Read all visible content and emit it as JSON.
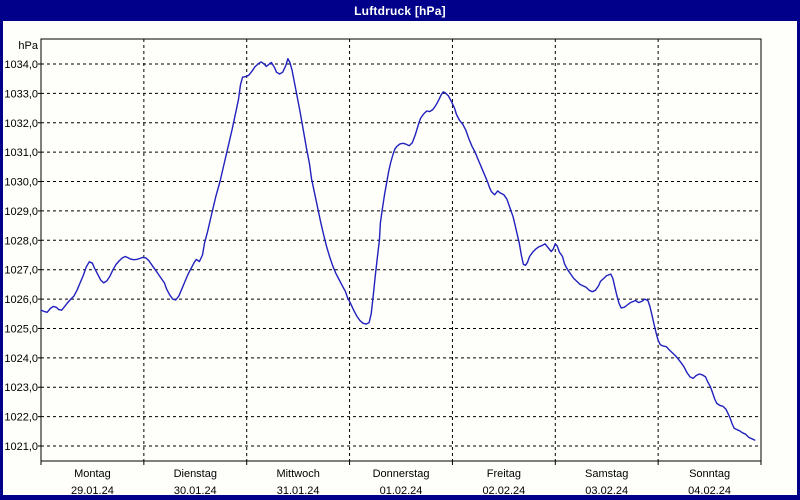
{
  "window": {
    "title": "Luftdruck [hPa]",
    "title_bar_color": "#00008B",
    "border_color": "#00008B",
    "panel_color": "#FEFEFA"
  },
  "chart_data": {
    "type": "line",
    "title": "Luftdruck [hPa]",
    "unit_label": "hPa",
    "ylabel": "hPa",
    "xlabel": "",
    "grid": "dashed",
    "legend": "none",
    "line_color": "#2121BE",
    "axis_color": "#000000",
    "ylim": [
      1020.5,
      1034.8
    ],
    "x_range_days": [
      0,
      7
    ],
    "y_ticks": [
      {
        "value": 1034,
        "label": "1034,0"
      },
      {
        "value": 1033,
        "label": "1033,0"
      },
      {
        "value": 1032,
        "label": "1032,0"
      },
      {
        "value": 1031,
        "label": "1031,0"
      },
      {
        "value": 1030,
        "label": "1030,0"
      },
      {
        "value": 1029,
        "label": "1029,0"
      },
      {
        "value": 1028,
        "label": "1028,0"
      },
      {
        "value": 1027,
        "label": "1027,0"
      },
      {
        "value": 1026,
        "label": "1026,0"
      },
      {
        "value": 1025,
        "label": "1025,0"
      },
      {
        "value": 1024,
        "label": "1024,0"
      },
      {
        "value": 1023,
        "label": "1023,0"
      },
      {
        "value": 1022,
        "label": "1022,0"
      },
      {
        "value": 1021,
        "label": "1021,0"
      }
    ],
    "x_days": [
      {
        "name": "Montag",
        "date": "29.01.24"
      },
      {
        "name": "Dienstag",
        "date": "30.01.24"
      },
      {
        "name": "Mittwoch",
        "date": "31.01.24"
      },
      {
        "name": "Donnerstag",
        "date": "01.02.24"
      },
      {
        "name": "Freitag",
        "date": "02.02.24"
      },
      {
        "name": "Samstag",
        "date": "03.02.24"
      },
      {
        "name": "Sonntag",
        "date": "04.02.24"
      }
    ],
    "series": [
      {
        "name": "Luftdruck",
        "unit": "hPa",
        "points": [
          [
            0.0,
            1025.62
          ],
          [
            0.03,
            1025.58
          ],
          [
            0.06,
            1025.55
          ],
          [
            0.09,
            1025.68
          ],
          [
            0.12,
            1025.75
          ],
          [
            0.15,
            1025.72
          ],
          [
            0.17,
            1025.65
          ],
          [
            0.2,
            1025.62
          ],
          [
            0.23,
            1025.75
          ],
          [
            0.26,
            1025.88
          ],
          [
            0.29,
            1026.0
          ],
          [
            0.32,
            1026.1
          ],
          [
            0.35,
            1026.3
          ],
          [
            0.38,
            1026.55
          ],
          [
            0.41,
            1026.8
          ],
          [
            0.44,
            1027.1
          ],
          [
            0.47,
            1027.27
          ],
          [
            0.5,
            1027.22
          ],
          [
            0.52,
            1027.05
          ],
          [
            0.55,
            1026.85
          ],
          [
            0.58,
            1026.65
          ],
          [
            0.61,
            1026.55
          ],
          [
            0.64,
            1026.62
          ],
          [
            0.67,
            1026.78
          ],
          [
            0.7,
            1027.0
          ],
          [
            0.73,
            1027.18
          ],
          [
            0.76,
            1027.3
          ],
          [
            0.79,
            1027.4
          ],
          [
            0.82,
            1027.45
          ],
          [
            0.85,
            1027.4
          ],
          [
            0.87,
            1027.36
          ],
          [
            0.9,
            1027.34
          ],
          [
            0.93,
            1027.35
          ],
          [
            0.96,
            1027.38
          ],
          [
            0.99,
            1027.42
          ],
          [
            1.02,
            1027.4
          ],
          [
            1.05,
            1027.3
          ],
          [
            1.08,
            1027.15
          ],
          [
            1.11,
            1027.0
          ],
          [
            1.14,
            1026.85
          ],
          [
            1.17,
            1026.7
          ],
          [
            1.2,
            1026.55
          ],
          [
            1.22,
            1026.35
          ],
          [
            1.25,
            1026.15
          ],
          [
            1.28,
            1026.0
          ],
          [
            1.31,
            1025.97
          ],
          [
            1.34,
            1026.1
          ],
          [
            1.37,
            1026.35
          ],
          [
            1.4,
            1026.6
          ],
          [
            1.43,
            1026.85
          ],
          [
            1.46,
            1027.05
          ],
          [
            1.49,
            1027.25
          ],
          [
            1.51,
            1027.35
          ],
          [
            1.54,
            1027.28
          ],
          [
            1.57,
            1027.5
          ],
          [
            1.59,
            1027.9
          ],
          [
            1.62,
            1028.3
          ],
          [
            1.66,
            1028.9
          ],
          [
            1.7,
            1029.5
          ],
          [
            1.74,
            1030.0
          ],
          [
            1.78,
            1030.6
          ],
          [
            1.82,
            1031.2
          ],
          [
            1.86,
            1031.8
          ],
          [
            1.89,
            1032.3
          ],
          [
            1.92,
            1032.8
          ],
          [
            1.94,
            1033.3
          ],
          [
            1.96,
            1033.55
          ],
          [
            1.99,
            1033.57
          ],
          [
            2.02,
            1033.62
          ],
          [
            2.05,
            1033.75
          ],
          [
            2.08,
            1033.9
          ],
          [
            2.11,
            1034.0
          ],
          [
            2.14,
            1034.07
          ],
          [
            2.17,
            1034.0
          ],
          [
            2.19,
            1033.92
          ],
          [
            2.22,
            1034.0
          ],
          [
            2.24,
            1034.05
          ],
          [
            2.27,
            1033.88
          ],
          [
            2.29,
            1033.72
          ],
          [
            2.32,
            1033.66
          ],
          [
            2.35,
            1033.72
          ],
          [
            2.38,
            1033.95
          ],
          [
            2.4,
            1034.18
          ],
          [
            2.42,
            1034.05
          ],
          [
            2.44,
            1033.8
          ],
          [
            2.46,
            1033.45
          ],
          [
            2.49,
            1032.9
          ],
          [
            2.52,
            1032.35
          ],
          [
            2.55,
            1031.75
          ],
          [
            2.58,
            1031.15
          ],
          [
            2.61,
            1030.6
          ],
          [
            2.63,
            1030.1
          ],
          [
            2.66,
            1029.6
          ],
          [
            2.69,
            1029.1
          ],
          [
            2.72,
            1028.6
          ],
          [
            2.75,
            1028.15
          ],
          [
            2.78,
            1027.75
          ],
          [
            2.81,
            1027.4
          ],
          [
            2.84,
            1027.1
          ],
          [
            2.87,
            1026.85
          ],
          [
            2.9,
            1026.65
          ],
          [
            2.93,
            1026.45
          ],
          [
            2.96,
            1026.25
          ],
          [
            2.98,
            1026.05
          ],
          [
            3.01,
            1025.85
          ],
          [
            3.04,
            1025.62
          ],
          [
            3.07,
            1025.42
          ],
          [
            3.1,
            1025.27
          ],
          [
            3.13,
            1025.18
          ],
          [
            3.16,
            1025.15
          ],
          [
            3.19,
            1025.2
          ],
          [
            3.21,
            1025.5
          ],
          [
            3.23,
            1026.1
          ],
          [
            3.25,
            1026.8
          ],
          [
            3.27,
            1027.4
          ],
          [
            3.29,
            1028.0
          ],
          [
            3.3,
            1028.6
          ],
          [
            3.32,
            1029.1
          ],
          [
            3.34,
            1029.55
          ],
          [
            3.36,
            1029.95
          ],
          [
            3.38,
            1030.35
          ],
          [
            3.4,
            1030.65
          ],
          [
            3.42,
            1030.9
          ],
          [
            3.44,
            1031.1
          ],
          [
            3.46,
            1031.2
          ],
          [
            3.49,
            1031.28
          ],
          [
            3.52,
            1031.3
          ],
          [
            3.55,
            1031.27
          ],
          [
            3.58,
            1031.22
          ],
          [
            3.61,
            1031.32
          ],
          [
            3.64,
            1031.6
          ],
          [
            3.67,
            1031.95
          ],
          [
            3.69,
            1032.15
          ],
          [
            3.72,
            1032.3
          ],
          [
            3.75,
            1032.4
          ],
          [
            3.78,
            1032.38
          ],
          [
            3.81,
            1032.45
          ],
          [
            3.84,
            1032.6
          ],
          [
            3.87,
            1032.8
          ],
          [
            3.89,
            1032.95
          ],
          [
            3.91,
            1033.05
          ],
          [
            3.93,
            1033.02
          ],
          [
            3.96,
            1032.92
          ],
          [
            3.99,
            1032.72
          ],
          [
            4.02,
            1032.5
          ],
          [
            4.04,
            1032.28
          ],
          [
            4.07,
            1032.08
          ],
          [
            4.1,
            1031.95
          ],
          [
            4.13,
            1031.75
          ],
          [
            4.16,
            1031.45
          ],
          [
            4.19,
            1031.2
          ],
          [
            4.22,
            1031.0
          ],
          [
            4.25,
            1030.75
          ],
          [
            4.28,
            1030.5
          ],
          [
            4.31,
            1030.25
          ],
          [
            4.34,
            1030.0
          ],
          [
            4.36,
            1029.8
          ],
          [
            4.38,
            1029.65
          ],
          [
            4.41,
            1029.55
          ],
          [
            4.44,
            1029.68
          ],
          [
            4.47,
            1029.6
          ],
          [
            4.5,
            1029.55
          ],
          [
            4.53,
            1029.4
          ],
          [
            4.56,
            1029.1
          ],
          [
            4.59,
            1028.8
          ],
          [
            4.61,
            1028.5
          ],
          [
            4.63,
            1028.2
          ],
          [
            4.65,
            1027.9
          ],
          [
            4.67,
            1027.5
          ],
          [
            4.69,
            1027.18
          ],
          [
            4.71,
            1027.15
          ],
          [
            4.73,
            1027.25
          ],
          [
            4.75,
            1027.45
          ],
          [
            4.78,
            1027.6
          ],
          [
            4.81,
            1027.7
          ],
          [
            4.84,
            1027.78
          ],
          [
            4.87,
            1027.82
          ],
          [
            4.9,
            1027.88
          ],
          [
            4.93,
            1027.75
          ],
          [
            4.96,
            1027.62
          ],
          [
            4.98,
            1027.7
          ],
          [
            5.0,
            1027.88
          ],
          [
            5.02,
            1027.8
          ],
          [
            5.04,
            1027.6
          ],
          [
            5.07,
            1027.45
          ],
          [
            5.09,
            1027.2
          ],
          [
            5.12,
            1027.0
          ],
          [
            5.15,
            1026.85
          ],
          [
            5.18,
            1026.7
          ],
          [
            5.21,
            1026.6
          ],
          [
            5.24,
            1026.5
          ],
          [
            5.27,
            1026.45
          ],
          [
            5.3,
            1026.4
          ],
          [
            5.33,
            1026.3
          ],
          [
            5.36,
            1026.25
          ],
          [
            5.39,
            1026.3
          ],
          [
            5.42,
            1026.45
          ],
          [
            5.44,
            1026.6
          ],
          [
            5.47,
            1026.7
          ],
          [
            5.5,
            1026.8
          ],
          [
            5.54,
            1026.85
          ],
          [
            5.56,
            1026.7
          ],
          [
            5.58,
            1026.4
          ],
          [
            5.6,
            1026.1
          ],
          [
            5.62,
            1025.85
          ],
          [
            5.64,
            1025.7
          ],
          [
            5.67,
            1025.72
          ],
          [
            5.7,
            1025.8
          ],
          [
            5.73,
            1025.88
          ],
          [
            5.76,
            1025.92
          ],
          [
            5.78,
            1025.95
          ],
          [
            5.81,
            1025.88
          ],
          [
            5.84,
            1025.92
          ],
          [
            5.87,
            1026.0
          ],
          [
            5.9,
            1025.95
          ],
          [
            5.92,
            1025.75
          ],
          [
            5.94,
            1025.45
          ],
          [
            5.96,
            1025.15
          ],
          [
            5.98,
            1024.85
          ],
          [
            6.0,
            1024.6
          ],
          [
            6.02,
            1024.45
          ],
          [
            6.05,
            1024.4
          ],
          [
            6.08,
            1024.38
          ],
          [
            6.1,
            1024.3
          ],
          [
            6.13,
            1024.2
          ],
          [
            6.16,
            1024.1
          ],
          [
            6.19,
            1023.98
          ],
          [
            6.22,
            1023.85
          ],
          [
            6.25,
            1023.7
          ],
          [
            6.28,
            1023.5
          ],
          [
            6.31,
            1023.35
          ],
          [
            6.34,
            1023.3
          ],
          [
            6.37,
            1023.4
          ],
          [
            6.4,
            1023.45
          ],
          [
            6.43,
            1023.42
          ],
          [
            6.46,
            1023.35
          ],
          [
            6.48,
            1023.2
          ],
          [
            6.51,
            1023.0
          ],
          [
            6.53,
            1022.8
          ],
          [
            6.55,
            1022.6
          ],
          [
            6.57,
            1022.45
          ],
          [
            6.6,
            1022.38
          ],
          [
            6.63,
            1022.35
          ],
          [
            6.66,
            1022.25
          ],
          [
            6.68,
            1022.1
          ],
          [
            6.7,
            1021.95
          ],
          [
            6.72,
            1021.75
          ],
          [
            6.74,
            1021.6
          ],
          [
            6.77,
            1021.55
          ],
          [
            6.79,
            1021.52
          ],
          [
            6.82,
            1021.45
          ],
          [
            6.85,
            1021.4
          ],
          [
            6.88,
            1021.3
          ],
          [
            6.91,
            1021.25
          ],
          [
            6.94,
            1021.2
          ]
        ]
      }
    ]
  }
}
